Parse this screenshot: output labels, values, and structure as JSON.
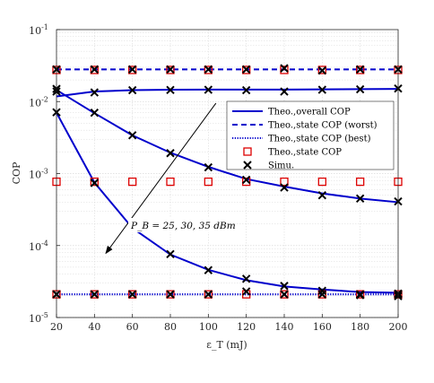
{
  "chart_data": {
    "type": "line",
    "xlabel": "ε_T (mJ)",
    "ylabel": "COP",
    "y_scale": "log",
    "xlim": [
      20,
      200
    ],
    "ylim_exponent": [
      -5,
      -1
    ],
    "grid": true,
    "legend_position": "upper-right",
    "x_ticks": [
      "20",
      "40",
      "60",
      "80",
      "100",
      "120",
      "140",
      "160",
      "180",
      "200"
    ],
    "y_ticks": [
      {
        "base": "10",
        "exp": "-5"
      },
      {
        "base": "10",
        "exp": "-4"
      },
      {
        "base": "10",
        "exp": "-3"
      },
      {
        "base": "10",
        "exp": "-2"
      },
      {
        "base": "10",
        "exp": "-1"
      }
    ],
    "x": [
      20,
      40,
      60,
      80,
      100,
      120,
      140,
      160,
      180,
      200
    ],
    "series": [
      {
        "name": "Theo.,overall COP",
        "style": "solid",
        "color": "#0000cc",
        "group": "PB=25",
        "values": [
          0.0118,
          0.0138,
          0.0144,
          0.0146,
          0.0147,
          0.0147,
          0.0147,
          0.0148,
          0.0149,
          0.015
        ]
      },
      {
        "name": "Theo.,overall COP",
        "style": "solid",
        "color": "#0000cc",
        "group": "PB=30",
        "values": [
          0.0145,
          0.0069,
          0.0034,
          0.00195,
          0.00124,
          0.00084,
          0.00066,
          0.00053,
          0.00045,
          0.0004
        ]
      },
      {
        "name": "Theo.,overall COP",
        "style": "solid",
        "color": "#0000cc",
        "group": "PB=35",
        "values": [
          0.007,
          0.00075,
          0.000175,
          7.5e-05,
          4.6e-05,
          3.3e-05,
          2.7e-05,
          2.45e-05,
          2.26e-05,
          2.21e-05
        ]
      },
      {
        "name": "Theo.,state COP (worst)",
        "style": "dashed",
        "color": "#0000cc",
        "values": [
          0.028,
          0.028,
          0.028,
          0.028,
          0.028,
          0.028,
          0.028,
          0.028,
          0.028,
          0.028
        ]
      },
      {
        "name": "Theo.,state COP (best)",
        "style": "dotted",
        "color": "#0000cc",
        "values": [
          2.1e-05,
          2.1e-05,
          2.1e-05,
          2.1e-05,
          2.1e-05,
          2.1e-05,
          2.1e-05,
          2.1e-05,
          2.1e-05,
          2.1e-05
        ]
      },
      {
        "name": "Theo.,state COP",
        "style": "marker-square",
        "color": "#dd0000",
        "points": [
          [
            20,
            0.0275
          ],
          [
            40,
            0.0275
          ],
          [
            60,
            0.0275
          ],
          [
            80,
            0.0275
          ],
          [
            100,
            0.0275
          ],
          [
            120,
            0.0275
          ],
          [
            140,
            0.0275
          ],
          [
            160,
            0.0275
          ],
          [
            180,
            0.0275
          ],
          [
            200,
            0.0275
          ],
          [
            20,
            0.00077
          ],
          [
            40,
            0.00077
          ],
          [
            60,
            0.00077
          ],
          [
            80,
            0.00077
          ],
          [
            100,
            0.00077
          ],
          [
            120,
            0.00077
          ],
          [
            140,
            0.00077
          ],
          [
            160,
            0.00077
          ],
          [
            180,
            0.00077
          ],
          [
            200,
            0.00077
          ],
          [
            20,
            2.1e-05
          ],
          [
            40,
            2.1e-05
          ],
          [
            60,
            2.1e-05
          ],
          [
            80,
            2.1e-05
          ],
          [
            100,
            2.1e-05
          ],
          [
            120,
            2.1e-05
          ],
          [
            140,
            2.1e-05
          ],
          [
            160,
            2.1e-05
          ],
          [
            180,
            2.1e-05
          ],
          [
            200,
            2.1e-05
          ]
        ]
      },
      {
        "name": "Simu.",
        "style": "marker-x",
        "color": "#000000",
        "points": [
          [
            20,
            0.028
          ],
          [
            40,
            0.028
          ],
          [
            60,
            0.028
          ],
          [
            80,
            0.028
          ],
          [
            100,
            0.028
          ],
          [
            120,
            0.028
          ],
          [
            140,
            0.029
          ],
          [
            160,
            0.027
          ],
          [
            180,
            0.028
          ],
          [
            200,
            0.028
          ],
          [
            20,
            0.015
          ],
          [
            40,
            0.0134
          ],
          [
            60,
            0.0144
          ],
          [
            80,
            0.0145
          ],
          [
            100,
            0.0146
          ],
          [
            120,
            0.0144
          ],
          [
            140,
            0.0138
          ],
          [
            160,
            0.0146
          ],
          [
            180,
            0.0148
          ],
          [
            200,
            0.0152
          ],
          [
            20,
            0.0138
          ],
          [
            40,
            0.007
          ],
          [
            60,
            0.0034
          ],
          [
            80,
            0.00192
          ],
          [
            100,
            0.00122
          ],
          [
            120,
            0.00082
          ],
          [
            140,
            0.00064
          ],
          [
            160,
            0.0005
          ],
          [
            180,
            0.00045
          ],
          [
            200,
            0.00041
          ],
          [
            20,
            0.0071
          ],
          [
            40,
            0.00074
          ],
          [
            60,
            0.000178
          ],
          [
            80,
            7.6e-05
          ],
          [
            100,
            4.55e-05
          ],
          [
            120,
            3.45e-05
          ],
          [
            140,
            2.75e-05
          ],
          [
            160,
            2.35e-05
          ],
          [
            180,
            2.05e-05
          ],
          [
            200,
            2.1e-05
          ],
          [
            20,
            2.1e-05
          ],
          [
            40,
            2.1e-05
          ],
          [
            60,
            2.1e-05
          ],
          [
            80,
            2.1e-05
          ],
          [
            100,
            2.1e-05
          ],
          [
            120,
            2.3e-05
          ],
          [
            140,
            2.1e-05
          ],
          [
            160,
            2.1e-05
          ],
          [
            180,
            2.1e-05
          ],
          [
            200,
            1.98e-05
          ],
          [
            200,
            2.15e-05
          ]
        ]
      }
    ],
    "legend": [
      {
        "label": "Theo.,overall COP",
        "kind": "solid"
      },
      {
        "label": "Theo.,state COP (worst)",
        "kind": "dashed"
      },
      {
        "label": "Theo.,state COP (best)",
        "kind": "dotted"
      },
      {
        "label": "Theo.,state COP",
        "kind": "square"
      },
      {
        "label": "Simu.",
        "kind": "x"
      }
    ],
    "annotation": {
      "text": "P_B = 25, 30, 35 dBm",
      "arrow_from": [
        104,
        0.0095
      ],
      "arrow_to": [
        46,
        7.8e-05
      ]
    },
    "colors": {
      "theory": "#0000cc",
      "state_marker": "#dd0000",
      "simu": "#000000",
      "grid": "#d9d9d9"
    }
  }
}
